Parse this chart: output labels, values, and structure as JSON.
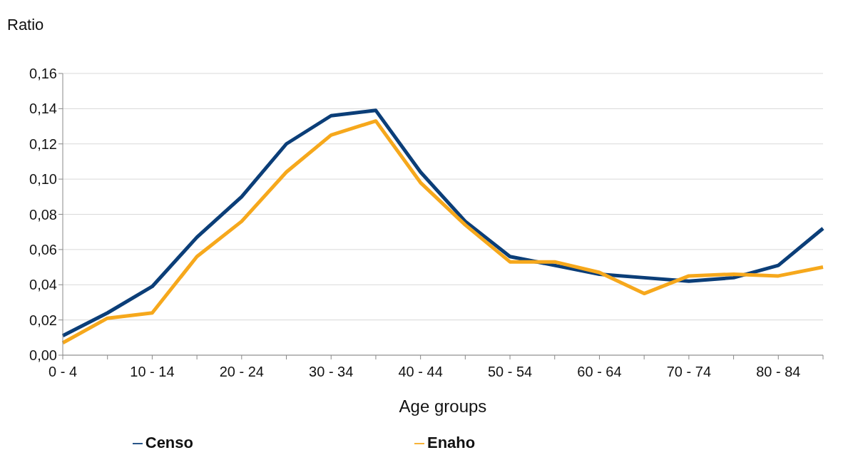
{
  "chart_data": {
    "type": "line",
    "ylabel": "Ratio",
    "xlabel": "Age groups",
    "categories": [
      "0 - 4",
      null,
      "10 - 14",
      null,
      "20 - 24",
      null,
      "30 - 34",
      null,
      "40 - 44",
      null,
      "50 - 54",
      null,
      "60 - 64",
      null,
      "70 - 74",
      null,
      "80 - 84",
      null
    ],
    "series": [
      {
        "name": "Censo",
        "color": "#0b3e78",
        "values": [
          0.011,
          0.024,
          0.039,
          0.067,
          0.09,
          0.12,
          0.136,
          0.139,
          0.104,
          0.076,
          0.056,
          0.051,
          0.046,
          0.044,
          0.042,
          0.044,
          0.051,
          0.072
        ]
      },
      {
        "name": "Enaho",
        "color": "#f6a81c",
        "values": [
          0.007,
          0.021,
          0.024,
          0.056,
          0.076,
          0.104,
          0.125,
          0.133,
          0.098,
          0.074,
          0.053,
          0.053,
          0.047,
          0.035,
          0.045,
          0.046,
          0.045,
          0.05
        ]
      }
    ],
    "ylim": [
      0,
      0.16
    ],
    "yticks": [
      {
        "value": 0,
        "label": "0,00"
      },
      {
        "value": 0.02,
        "label": "0,02"
      },
      {
        "value": 0.04,
        "label": "0,04"
      },
      {
        "value": 0.06,
        "label": "0,06"
      },
      {
        "value": 0.08,
        "label": "0,08"
      },
      {
        "value": 0.1,
        "label": "0,10"
      },
      {
        "value": 0.12,
        "label": "0,12"
      },
      {
        "value": 0.14,
        "label": "0,14"
      },
      {
        "value": 0.16,
        "label": "0,16"
      }
    ],
    "grid": "y",
    "legend": "bottom",
    "marker": "none",
    "line_style": "solid"
  }
}
